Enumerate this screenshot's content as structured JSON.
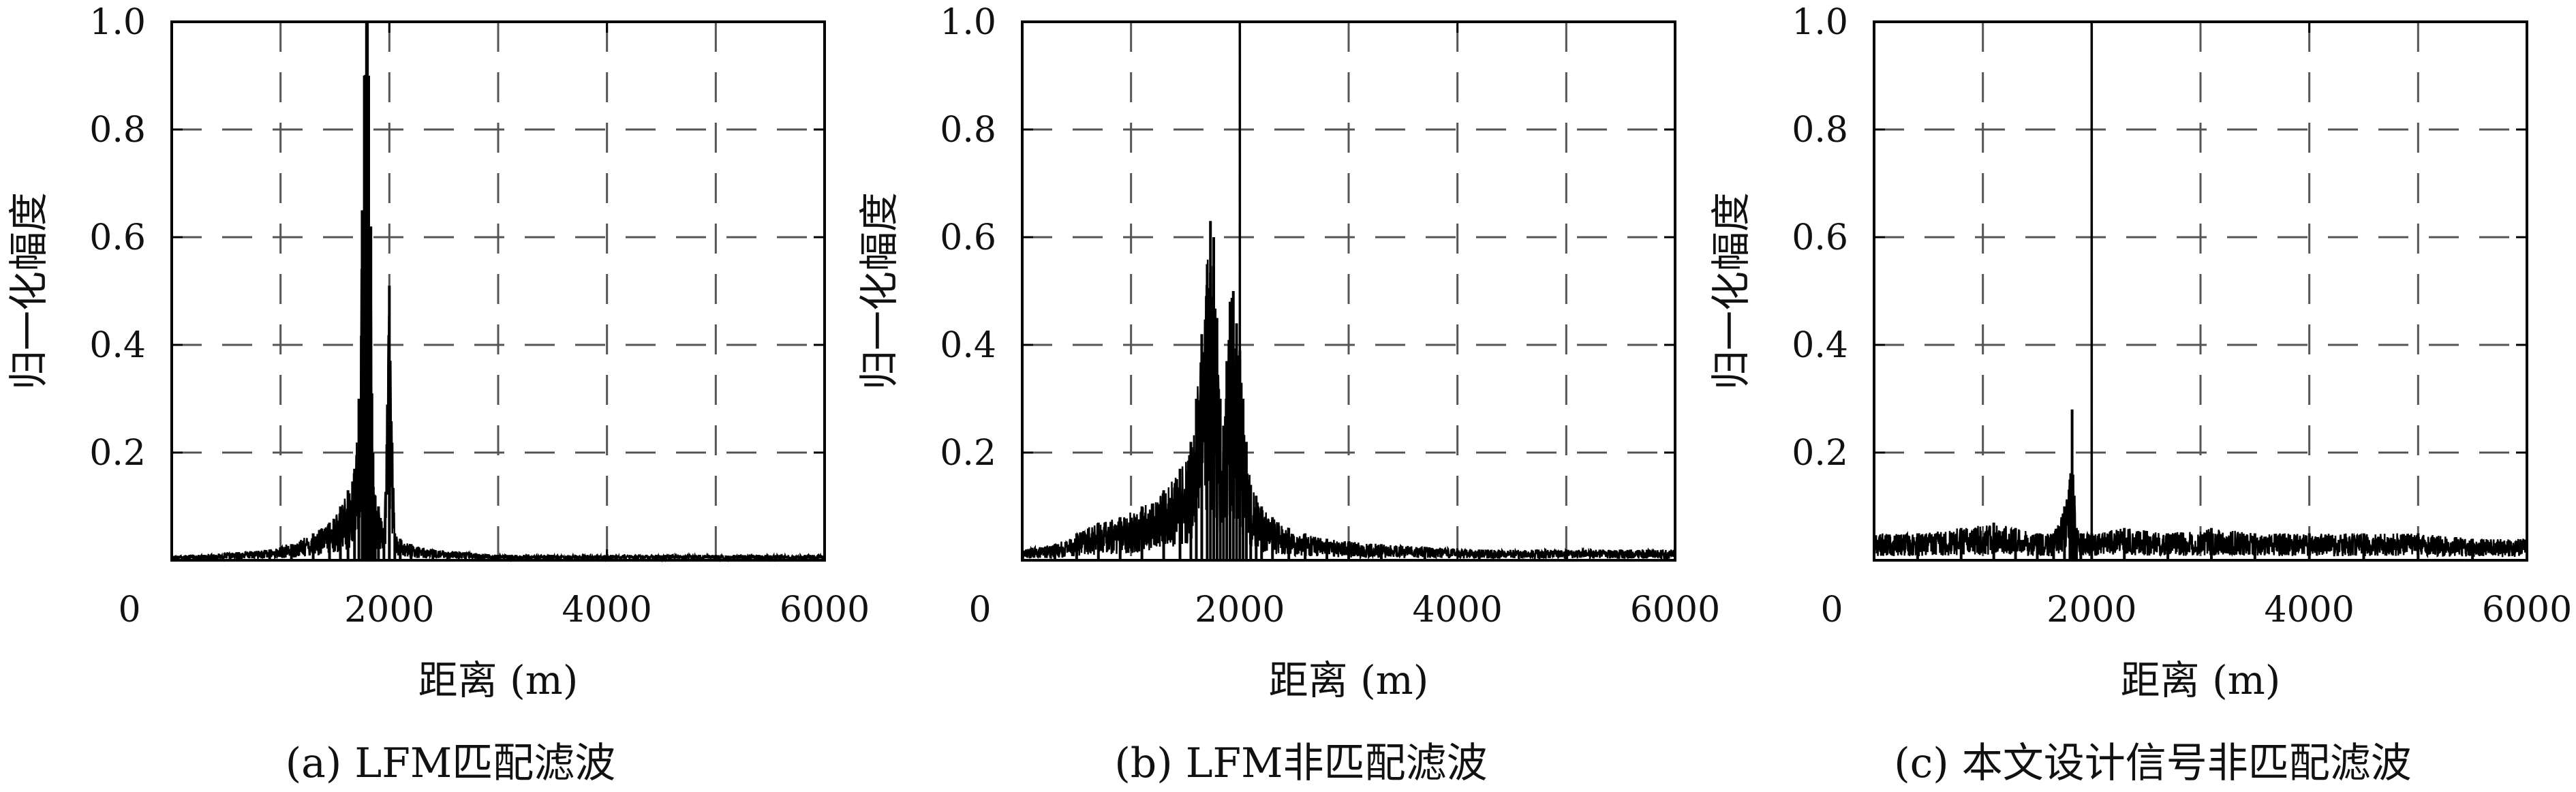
{
  "chart_data": [
    {
      "type": "line",
      "caption": "(a) LFM匹配滤波",
      "xlabel": "距离 (m)",
      "ylabel": "归一化幅度",
      "xlim": [
        0,
        6000
      ],
      "ylim": [
        0,
        1.0
      ],
      "xticks": [
        0,
        2000,
        4000,
        6000
      ],
      "xtick_labels": [
        "0",
        "2000",
        "4000",
        "6000"
      ],
      "yticks": [
        0.2,
        0.4,
        0.6,
        0.8,
        1.0
      ],
      "ytick_labels": [
        "0.2",
        "0.4",
        "0.6",
        "0.8",
        "1.0"
      ],
      "grid": "dashed",
      "reference_x": 1800,
      "series": [
        {
          "color": "#000000",
          "x": [
            0,
            300,
            600,
            900,
            1100,
            1300,
            1450,
            1550,
            1620,
            1680,
            1720,
            1750,
            1770,
            1790,
            1800,
            1810,
            1820,
            1830,
            1840,
            1850,
            1870,
            1900,
            1950,
            2000,
            2050,
            2100,
            2200,
            2400,
            2700,
            3000,
            3500,
            4000,
            5000,
            6000
          ],
          "y": [
            0.01,
            0.01,
            0.015,
            0.02,
            0.03,
            0.05,
            0.07,
            0.1,
            0.13,
            0.17,
            0.3,
            0.65,
            0.9,
            1.0,
            0.65,
            0.9,
            0.3,
            0.62,
            0.31,
            0.2,
            0.12,
            0.1,
            0.06,
            0.51,
            0.05,
            0.04,
            0.03,
            0.02,
            0.015,
            0.01,
            0.01,
            0.01,
            0.01,
            0.01
          ]
        }
      ]
    },
    {
      "type": "line",
      "caption": "(b) LFM非匹配滤波",
      "xlabel": "距离 (m)",
      "ylabel": "归一化幅度",
      "xlim": [
        0,
        6000
      ],
      "ylim": [
        0,
        1.0
      ],
      "xticks": [
        0,
        2000,
        4000,
        6000
      ],
      "xtick_labels": [
        "0",
        "2000",
        "4000",
        "6000"
      ],
      "yticks": [
        0.2,
        0.4,
        0.6,
        0.8,
        1.0
      ],
      "ytick_labels": [
        "0.2",
        "0.4",
        "0.6",
        "0.8",
        "1.0"
      ],
      "grid": "dashed",
      "reference_x": 2000,
      "series": [
        {
          "color": "#000000",
          "x": [
            0,
            300,
            500,
            700,
            900,
            1100,
            1300,
            1450,
            1550,
            1600,
            1650,
            1700,
            1730,
            1760,
            1790,
            1820,
            1850,
            1880,
            1910,
            1940,
            1970,
            2000,
            2030,
            2060,
            2100,
            2150,
            2200,
            2300,
            2450,
            2600,
            2800,
            3000,
            3300,
            3700,
            4200,
            5000,
            6000
          ],
          "y": [
            0.02,
            0.03,
            0.05,
            0.07,
            0.08,
            0.1,
            0.13,
            0.17,
            0.22,
            0.3,
            0.42,
            0.55,
            0.63,
            0.6,
            0.45,
            0.3,
            0.25,
            0.37,
            0.48,
            0.5,
            0.44,
            0.39,
            0.3,
            0.22,
            0.14,
            0.12,
            0.1,
            0.08,
            0.06,
            0.05,
            0.04,
            0.035,
            0.03,
            0.025,
            0.02,
            0.02,
            0.02
          ]
        }
      ]
    },
    {
      "type": "line",
      "caption": "(c) 本文设计信号非匹配滤波",
      "xlabel": "距离 (m)",
      "ylabel": "归一化幅度",
      "xlim": [
        0,
        6000
      ],
      "ylim": [
        0,
        1.0
      ],
      "xticks": [
        0,
        2000,
        4000,
        6000
      ],
      "xtick_labels": [
        "0",
        "2000",
        "4000",
        "6000"
      ],
      "yticks": [
        0.2,
        0.4,
        0.6,
        0.8,
        1.0
      ],
      "ytick_labels": [
        "0.2",
        "0.4",
        "0.6",
        "0.8",
        "1.0"
      ],
      "grid": "dashed",
      "reference_x": 2000,
      "series": [
        {
          "color": "#000000",
          "x": [
            0,
            400,
            800,
            1100,
            1300,
            1500,
            1650,
            1750,
            1800,
            1820,
            1840,
            1860,
            1900,
            2000,
            2300,
            2700,
            3100,
            3500,
            4000,
            4500,
            5000,
            5500,
            6000
          ],
          "y": [
            0.05,
            0.05,
            0.06,
            0.07,
            0.06,
            0.05,
            0.05,
            0.1,
            0.15,
            0.28,
            0.12,
            0.06,
            0.05,
            0.05,
            0.06,
            0.05,
            0.06,
            0.05,
            0.05,
            0.05,
            0.05,
            0.04,
            0.04
          ]
        }
      ]
    }
  ]
}
